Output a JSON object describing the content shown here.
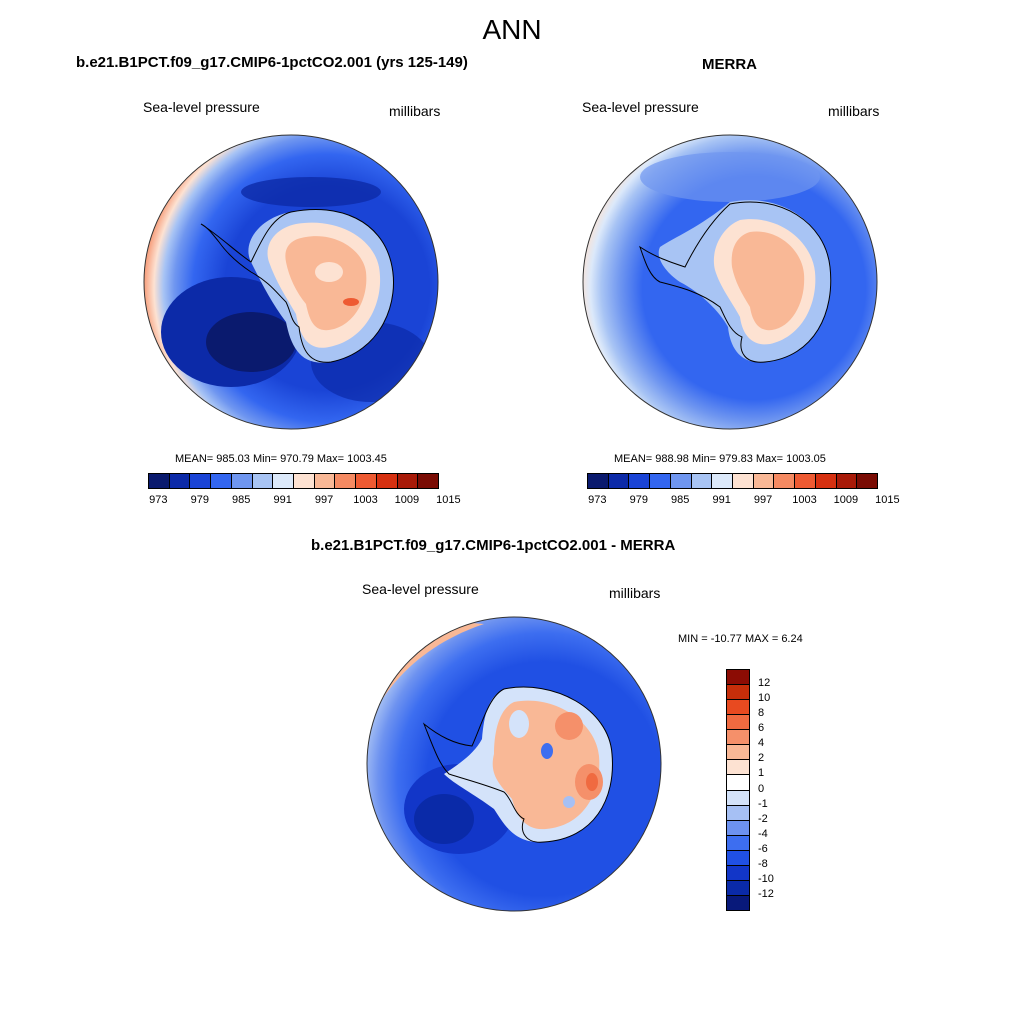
{
  "title": "ANN",
  "panels": [
    {
      "title": "b.e21.B1PCT.f09_g17.CMIP6-1pctCO2.001 (yrs 125-149)",
      "left_label": "Sea-level pressure",
      "right_label": "millibars",
      "stats": "MEAN= 985.03  Min= 970.79  Max= 1003.45"
    },
    {
      "title": "MERRA",
      "left_label": "Sea-level pressure",
      "right_label": "millibars",
      "stats": "MEAN= 988.98  Min= 979.83  Max= 1003.05"
    },
    {
      "title": "b.e21.B1PCT.f09_g17.CMIP6-1pctCO2.001 - MERRA",
      "left_label": "Sea-level pressure",
      "right_label": "millibars",
      "stats": "MIN = -10.77 MAX =   6.24"
    }
  ],
  "colorbar_abs": {
    "colors": [
      "#0a1a6e",
      "#0c2aa8",
      "#1a44d6",
      "#3366f0",
      "#6f96f0",
      "#a8c4f4",
      "#dce9fa",
      "#fde2d2",
      "#f9b896",
      "#f58a62",
      "#ee5a32",
      "#d63010",
      "#a81a08",
      "#7a0c04"
    ],
    "labels": [
      "973",
      "979",
      "985",
      "991",
      "997",
      "1003",
      "1009",
      "1015"
    ]
  },
  "colorbar_diff": {
    "colors": [
      "#08197a",
      "#0a2aa8",
      "#1236c8",
      "#2050e4",
      "#3d6ef0",
      "#6d92f0",
      "#a6c0f4",
      "#d4e3fa",
      "#ffffff",
      "#fde2d2",
      "#f9b896",
      "#f5906a",
      "#f06a40",
      "#e84a20",
      "#c62e0a",
      "#8c0c04"
    ],
    "labels": [
      "12",
      "10",
      "8",
      "6",
      "4",
      "2",
      "1",
      "0",
      "-1",
      "-2",
      "-4",
      "-6",
      "-8",
      "-10",
      "-12"
    ]
  },
  "colors": {
    "antarctica_outline": "#000000",
    "map_border": "#333333"
  }
}
